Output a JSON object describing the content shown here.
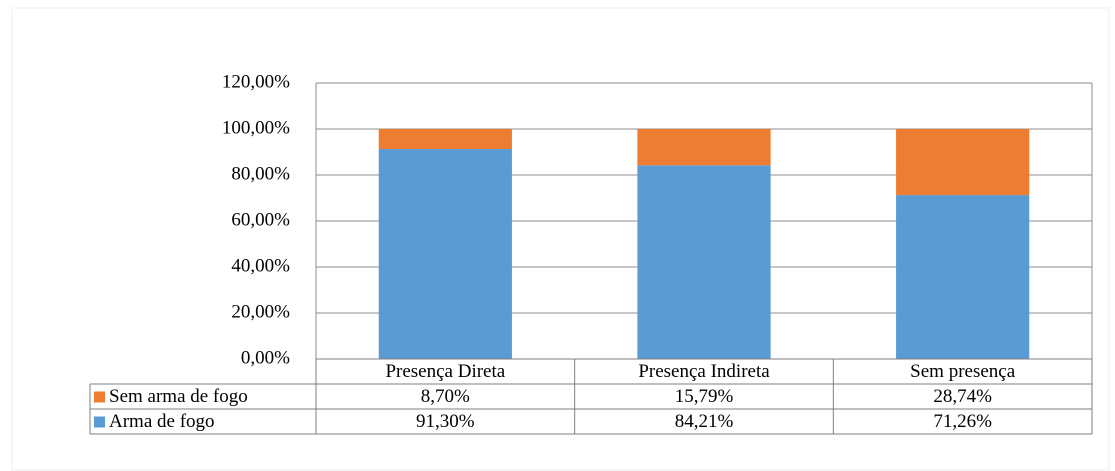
{
  "chart_data": {
    "type": "bar",
    "stacked": true,
    "categories": [
      "Presença Direta",
      "Presença Indireta",
      "Sem presença"
    ],
    "series": [
      {
        "name": "Arma de fogo",
        "color": "#5b9bd5",
        "values": [
          91.3,
          84.21,
          71.26
        ],
        "value_labels": [
          "91,30%",
          "84,21%",
          "71,26%"
        ]
      },
      {
        "name": "Sem arma de fogo",
        "color": "#ed7d31",
        "values": [
          8.7,
          15.79,
          28.74
        ],
        "value_labels": [
          "8,70%",
          "15,79%",
          "28,74%"
        ]
      }
    ],
    "ylim": [
      0,
      120
    ],
    "yticks": [
      {
        "value": 0,
        "label": "0,00%"
      },
      {
        "value": 20,
        "label": "20,00%"
      },
      {
        "value": 40,
        "label": "40,00%"
      },
      {
        "value": 60,
        "label": "60,00%"
      },
      {
        "value": 80,
        "label": "80,00%"
      },
      {
        "value": 100,
        "label": "100,00%"
      },
      {
        "value": 120,
        "label": "120,00%"
      }
    ],
    "grid": true
  }
}
